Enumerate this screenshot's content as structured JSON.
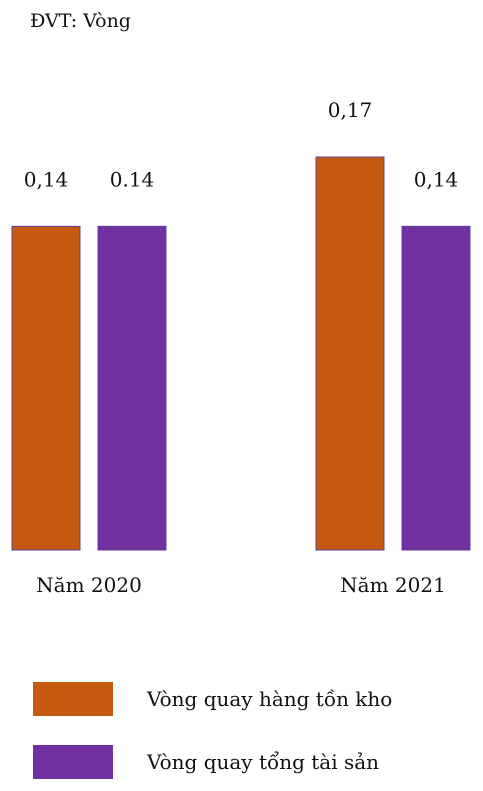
{
  "unit_label": "ĐVT: Vòng",
  "chart_data": {
    "type": "bar",
    "categories": [
      "Năm 2020",
      "Năm 2021"
    ],
    "series": [
      {
        "name": "Vòng quay hàng tồn kho",
        "values": [
          0.14,
          0.17
        ],
        "labels": [
          "0,14",
          "0,17"
        ],
        "color": "#c55a11"
      },
      {
        "name": "Vòng quay tổng tài sản",
        "values": [
          0.14,
          0.14
        ],
        "labels": [
          "0.14",
          "0,14"
        ],
        "color": "#7030a0"
      }
    ],
    "ylim": [
      0,
      0.17
    ],
    "grid": false,
    "legend_position": "bottom"
  }
}
